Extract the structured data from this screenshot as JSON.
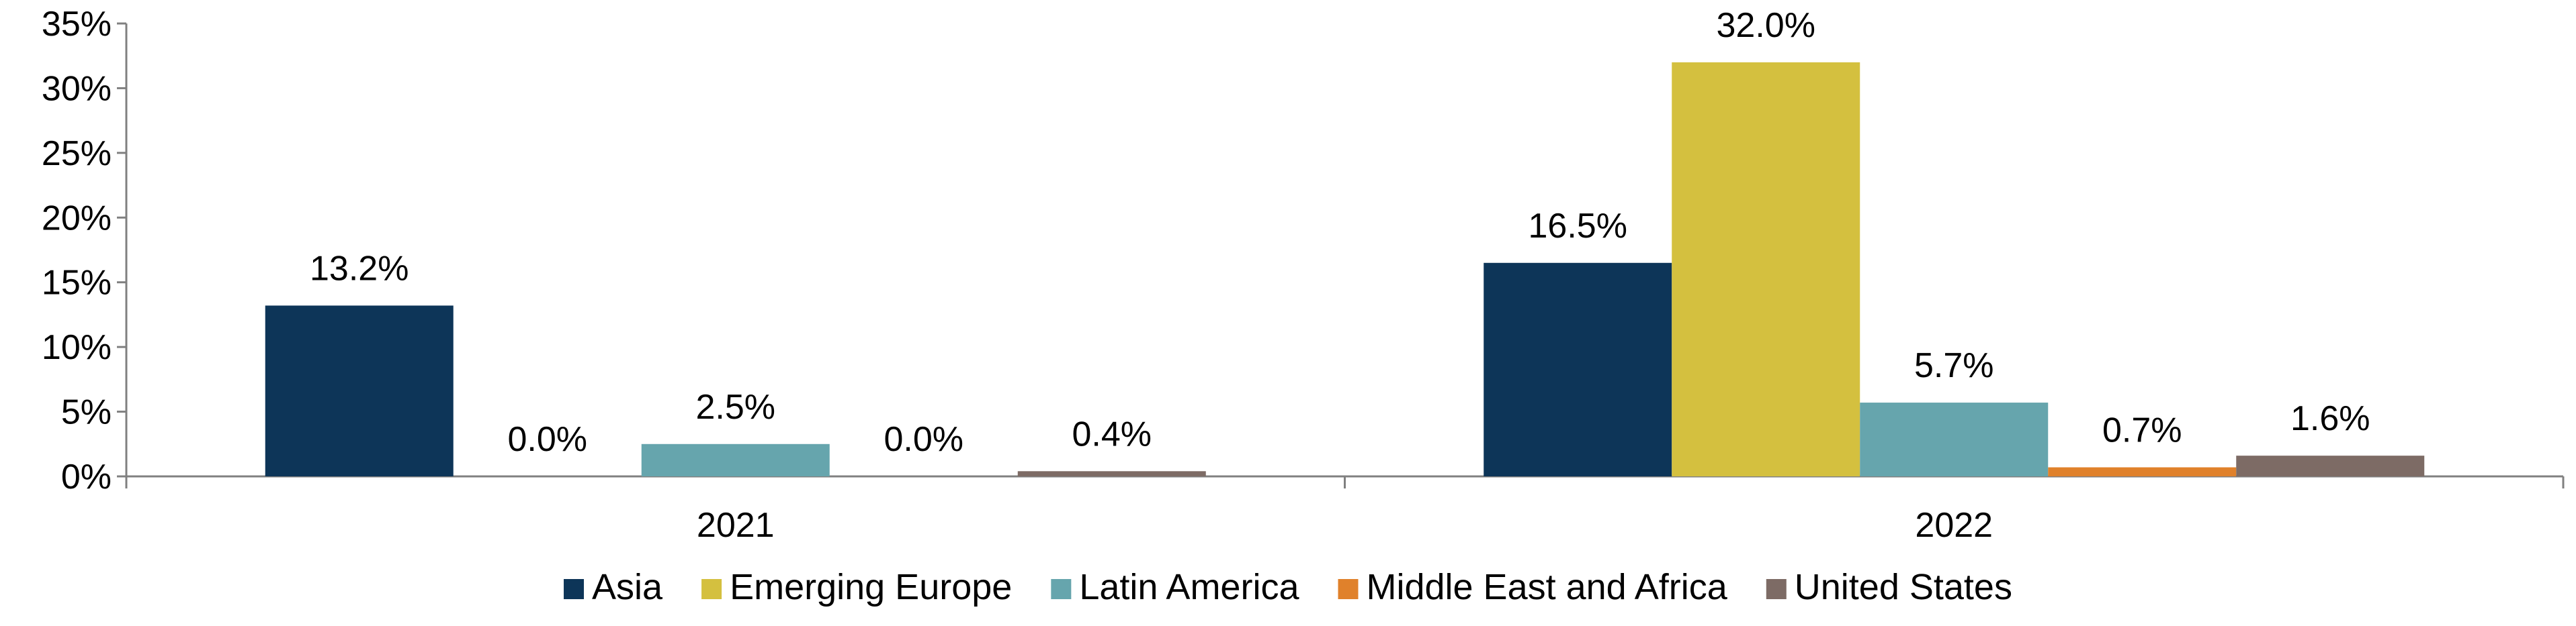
{
  "chart_data": {
    "type": "bar",
    "categories": [
      "2021",
      "2022"
    ],
    "series": [
      {
        "name": "Asia",
        "values": [
          13.2,
          16.5
        ],
        "color": "#0d3558"
      },
      {
        "name": "Emerging Europe",
        "values": [
          0.0,
          32.0
        ],
        "color": "#d4c03f"
      },
      {
        "name": "Latin America",
        "values": [
          2.5,
          5.7
        ],
        "color": "#66a5ad"
      },
      {
        "name": "Middle East and Africa",
        "values": [
          0.0,
          0.7
        ],
        "color": "#e0812b"
      },
      {
        "name": "United States",
        "values": [
          0.4,
          1.6
        ],
        "color": "#7d6b65"
      }
    ],
    "data_labels": [
      [
        "13.2%",
        "16.5%"
      ],
      [
        "0.0%",
        "32.0%"
      ],
      [
        "2.5%",
        "5.7%"
      ],
      [
        "0.0%",
        "0.7%"
      ],
      [
        "0.4%",
        "1.6%"
      ]
    ],
    "ylim": [
      0,
      35
    ],
    "yticks": [
      0,
      5,
      10,
      15,
      20,
      25,
      30,
      35
    ],
    "ytick_labels": [
      "0%",
      "5%",
      "10%",
      "15%",
      "20%",
      "25%",
      "30%",
      "35%"
    ],
    "grid": false,
    "legend_position": "bottom"
  }
}
